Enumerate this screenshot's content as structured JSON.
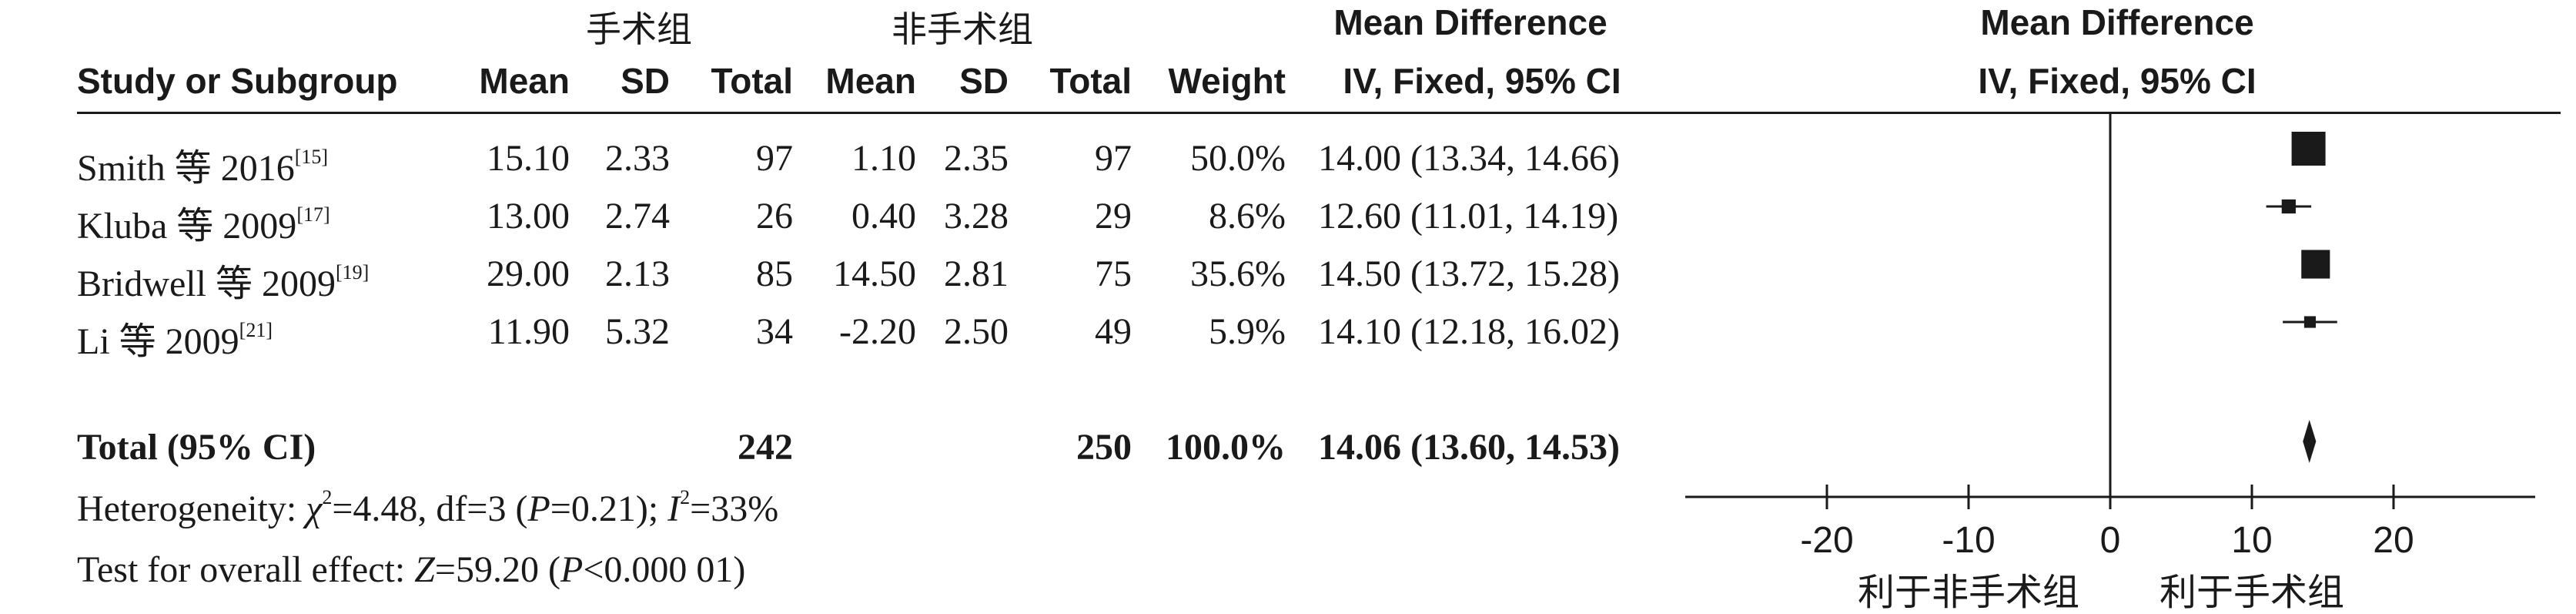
{
  "groups": {
    "exp": "手术组",
    "ctrl": "非手术组"
  },
  "headers": {
    "study": "Study or Subgroup",
    "mean": "Mean",
    "sd": "SD",
    "total": "Total",
    "weight": "Weight",
    "md_title": "Mean Difference",
    "md_method": "IV, Fixed, 95% CI"
  },
  "studies": [
    {
      "name": "Smith 等 2016",
      "ref": "[15]",
      "exp_mean": "15.10",
      "exp_sd": "2.33",
      "exp_total": "97",
      "ctrl_mean": "1.10",
      "ctrl_sd": "2.35",
      "ctrl_total": "97",
      "weight": "50.0%",
      "ci": "14.00 (13.34, 14.66)"
    },
    {
      "name": "Kluba 等 2009",
      "ref": "[17]",
      "exp_mean": "13.00",
      "exp_sd": "2.74",
      "exp_total": "26",
      "ctrl_mean": "0.40",
      "ctrl_sd": "3.28",
      "ctrl_total": "29",
      "weight": "8.6%",
      "ci": "12.60 (11.01, 14.19)"
    },
    {
      "name": "Bridwell 等 2009",
      "ref": "[19]",
      "exp_mean": "29.00",
      "exp_sd": "2.13",
      "exp_total": "85",
      "ctrl_mean": "14.50",
      "ctrl_sd": "2.81",
      "ctrl_total": "75",
      "weight": "35.6%",
      "ci": "14.50 (13.72, 15.28)"
    },
    {
      "name": "Li 等 2009",
      "ref": "[21]",
      "exp_mean": "11.90",
      "exp_sd": "5.32",
      "exp_total": "34",
      "ctrl_mean": "-2.20",
      "ctrl_sd": "2.50",
      "ctrl_total": "49",
      "weight": "5.9%",
      "ci": "14.10 (12.18, 16.02)"
    }
  ],
  "total": {
    "label": "Total (95% CI)",
    "exp_total": "242",
    "ctrl_total": "250",
    "weight": "100.0%",
    "ci": "14.06 (13.60, 14.53)"
  },
  "heterogeneity": {
    "prefix": "Heterogeneity: ",
    "chi": "χ",
    "chi_val": "=4.48, df=3 (",
    "p": "P",
    "p_val": "=0.21); ",
    "i": "I",
    "i_val": "=33%"
  },
  "overall": {
    "prefix": "Test for overall effect: ",
    "z": "Z",
    "z_val": "=59.20 (",
    "p": "P",
    "p_val": "<0.000 01)"
  },
  "axis_labels": {
    "left": "利于非手术组",
    "right": "利于手术组"
  },
  "chart_data": {
    "type": "forest",
    "title": "Mean Difference",
    "subtitle": "IV, Fixed, 95% CI",
    "xlim": [
      -30,
      30
    ],
    "ticks": [
      -20,
      -10,
      0,
      10,
      20
    ],
    "tick_labels": [
      "-20",
      "-10",
      "0",
      "10",
      "20"
    ],
    "x_left_label": "利于非手术组",
    "x_right_label": "利于手术组",
    "studies": [
      {
        "name": "Smith 等 2016",
        "md": 14.0,
        "lower": 13.34,
        "upper": 14.66,
        "weight": 50.0
      },
      {
        "name": "Kluba 等 2009",
        "md": 12.6,
        "lower": 11.01,
        "upper": 14.19,
        "weight": 8.6
      },
      {
        "name": "Bridwell 等 2009",
        "md": 14.5,
        "lower": 13.72,
        "upper": 15.28,
        "weight": 35.6
      },
      {
        "name": "Li 等 2009",
        "md": 14.1,
        "lower": 12.18,
        "upper": 16.02,
        "weight": 5.9
      }
    ],
    "pooled": {
      "md": 14.06,
      "lower": 13.6,
      "upper": 14.53
    },
    "colors": {
      "ink": "#1a1a1a"
    }
  }
}
